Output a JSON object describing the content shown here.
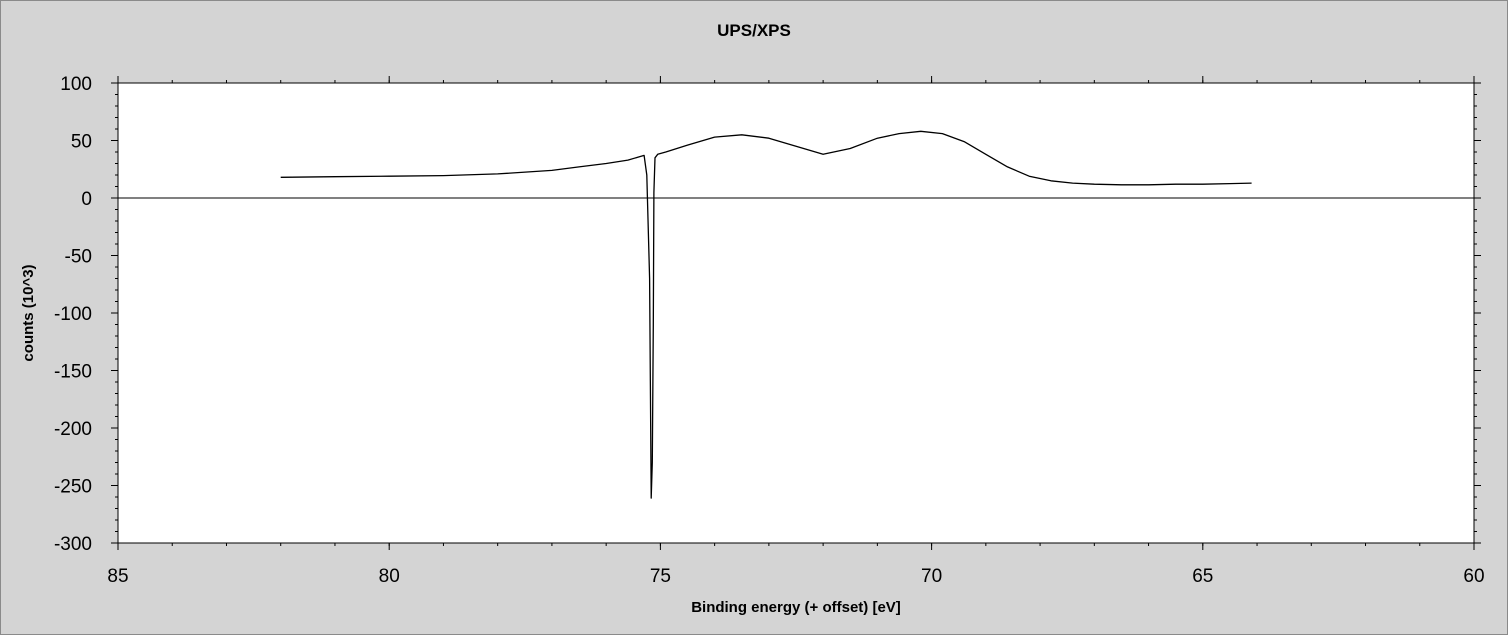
{
  "chart_data": {
    "type": "line",
    "title": "UPS/XPS",
    "xlabel": "Binding energy (+ offset) [eV]",
    "ylabel": "counts (10^3)",
    "xlim": [
      85,
      60
    ],
    "ylim": [
      -300,
      100
    ],
    "x_reversed": true,
    "x_ticks": [
      85,
      80,
      75,
      70,
      65,
      60
    ],
    "x_tick_labels": [
      "85",
      "80",
      "75",
      "70",
      "65",
      "60"
    ],
    "y_ticks": [
      100,
      50,
      0,
      -50,
      -100,
      -150,
      -200,
      -250,
      -300
    ],
    "y_tick_labels": [
      "100",
      "50",
      "0",
      "-50",
      "-100",
      "-150",
      "-200",
      "-250",
      "-300"
    ],
    "zero_line": true,
    "grid": false,
    "legend": "none",
    "series": [
      {
        "x": [
          82.0,
          81.0,
          80.0,
          79.0,
          78.0,
          77.0,
          76.5,
          76.0,
          75.6,
          75.3,
          75.25,
          75.2,
          75.17,
          75.15,
          75.13,
          75.12,
          75.1,
          75.05,
          74.9,
          74.5,
          74.0,
          73.5,
          73.0,
          72.5,
          72.0,
          71.5,
          71.0,
          70.6,
          70.2,
          69.8,
          69.4,
          69.0,
          68.6,
          68.2,
          67.8,
          67.4,
          67.0,
          66.5,
          66.0,
          65.5,
          65.0,
          64.5,
          64.1
        ],
        "y": [
          18,
          18.5,
          19,
          19.5,
          21,
          24,
          27,
          30,
          33,
          37,
          20,
          -70,
          -261,
          -230,
          -110,
          5,
          35,
          38,
          40,
          46,
          53,
          55,
          52,
          45,
          38,
          43,
          52,
          56,
          58,
          56,
          49,
          38,
          27,
          19,
          15,
          13,
          12,
          11.5,
          11.5,
          12,
          12,
          12.5,
          13
        ],
        "color": "#000000"
      }
    ]
  }
}
